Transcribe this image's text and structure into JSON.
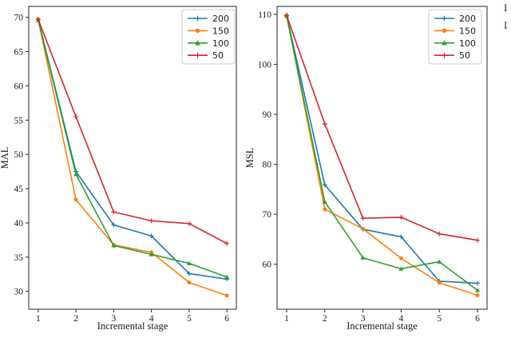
{
  "figure": {
    "background": "#ffffff",
    "axis_color": "#262626",
    "tick_color": "#262626",
    "legend_border_color": "#cccccc",
    "legend_background": "#ffffff",
    "fragments": [
      "I",
      "I"
    ]
  },
  "chart_data": [
    {
      "type": "line",
      "title": "",
      "xlabel": "Incremental stage",
      "ylabel": "MAL",
      "x": [
        1,
        2,
        3,
        4,
        5,
        6
      ],
      "xticks": [
        1,
        2,
        3,
        4,
        5,
        6
      ],
      "yticks": [
        30,
        35,
        40,
        45,
        50,
        55,
        60,
        65,
        70
      ],
      "xlim": [
        0.75,
        6.25
      ],
      "ylim": [
        27.4,
        71.6
      ],
      "grid": false,
      "legend_position": "upper right",
      "series": [
        {
          "name": "200",
          "color": "#1f77b4",
          "marker": "plus",
          "values": [
            69.7,
            47.5,
            39.7,
            38.1,
            32.6,
            31.8
          ]
        },
        {
          "name": "150",
          "color": "#ff7f0e",
          "marker": "circle",
          "values": [
            69.7,
            43.4,
            36.8,
            35.7,
            31.3,
            29.4
          ]
        },
        {
          "name": "100",
          "color": "#2ca02c",
          "marker": "triangle",
          "values": [
            69.6,
            47.1,
            36.7,
            35.4,
            34.1,
            32.1
          ]
        },
        {
          "name": "50",
          "color": "#d62728",
          "marker": "plus",
          "values": [
            69.7,
            55.5,
            41.6,
            40.3,
            39.9,
            37.0
          ]
        }
      ]
    },
    {
      "type": "line",
      "title": "",
      "xlabel": "Incremental stage",
      "ylabel": "MSL",
      "x": [
        1,
        2,
        3,
        4,
        5,
        6
      ],
      "xticks": [
        1,
        2,
        3,
        4,
        5,
        6
      ],
      "yticks": [
        60,
        70,
        80,
        90,
        100,
        110
      ],
      "xlim": [
        0.75,
        6.25
      ],
      "ylim": [
        51.0,
        111.6
      ],
      "grid": false,
      "legend_position": "upper right",
      "series": [
        {
          "name": "200",
          "color": "#1f77b4",
          "marker": "plus",
          "values": [
            109.8,
            75.9,
            67.0,
            65.5,
            56.6,
            56.2
          ]
        },
        {
          "name": "150",
          "color": "#ff7f0e",
          "marker": "circle",
          "values": [
            109.8,
            71.0,
            67.1,
            61.2,
            56.3,
            53.8
          ]
        },
        {
          "name": "100",
          "color": "#2ca02c",
          "marker": "triangle",
          "values": [
            109.7,
            72.5,
            61.3,
            59.1,
            60.5,
            54.8
          ]
        },
        {
          "name": "50",
          "color": "#d62728",
          "marker": "plus",
          "values": [
            109.8,
            88.1,
            69.2,
            69.4,
            66.1,
            64.8
          ]
        }
      ]
    }
  ]
}
